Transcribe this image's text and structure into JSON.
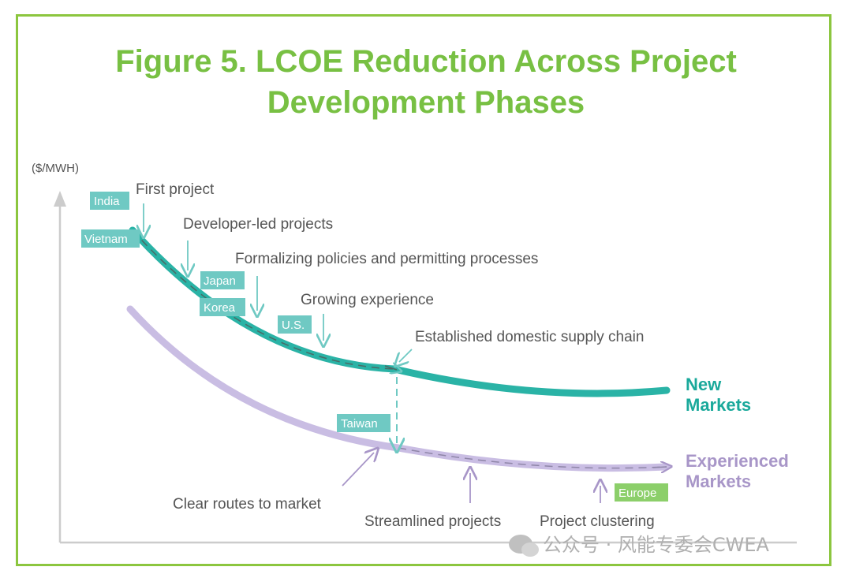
{
  "title_line1": "Figure 5. LCOE Reduction Across Project",
  "title_line2": "Development Phases",
  "y_axis_unit": "($/MWH)",
  "colors": {
    "frame": "#8cc63f",
    "title": "#78c043",
    "new_curve": "#2ab3a6",
    "exp_curve": "#c9bde3",
    "tag_teal": "#6fc9c3",
    "tag_green": "#8ccf6a"
  },
  "curves": {
    "new": "New Markets",
    "new_l1": "New",
    "new_l2": "Markets",
    "exp_l1": "Experienced",
    "exp_l2": "Markets"
  },
  "country_tags": {
    "india": "India",
    "vietnam": "Vietnam",
    "japan": "Japan",
    "korea": "Korea",
    "us": "U.S.",
    "taiwan": "Taiwan",
    "europe": "Europe"
  },
  "phases_new": {
    "first": "First project",
    "developer": "Developer-led projects",
    "formalizing": "Formalizing policies and permitting processes",
    "growing": "Growing experience",
    "supply": "Established domestic supply chain"
  },
  "phases_exp": {
    "routes": "Clear routes to market",
    "streamlined": "Streamlined projects",
    "clustering": "Project clustering"
  },
  "watermark": "公众号 · 风能专委会CWEA"
}
